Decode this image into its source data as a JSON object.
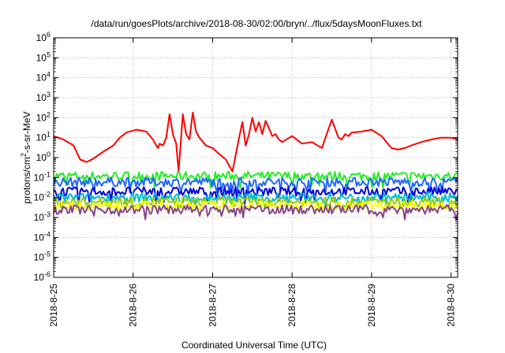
{
  "chart_data": {
    "type": "line",
    "title": "/data/run/goesPlots/archive/2018-08-30/02:00/bryn/../flux/5daysMoonFluxes.txt",
    "xlabel": "Coordinated Universal Time (UTC)",
    "ylabel_parts": [
      "protons/cm",
      "2",
      "-s-sr-MeV"
    ],
    "y_scale": "log",
    "ylim": [
      1e-06,
      1000000.0
    ],
    "y_ticks": [
      {
        "base": "10",
        "exp": "6",
        "value": 1000000.0
      },
      {
        "base": "10",
        "exp": "5",
        "value": 100000.0
      },
      {
        "base": "10",
        "exp": "4",
        "value": 10000.0
      },
      {
        "base": "10",
        "exp": "3",
        "value": 1000.0
      },
      {
        "base": "10",
        "exp": "2",
        "value": 100.0
      },
      {
        "base": "10",
        "exp": "1",
        "value": 10.0
      },
      {
        "base": "10",
        "exp": "0",
        "value": 1.0
      },
      {
        "base": "10",
        "exp": "-1",
        "value": 0.1
      },
      {
        "base": "10",
        "exp": "-2",
        "value": 0.01
      },
      {
        "base": "10",
        "exp": "-3",
        "value": 0.001
      },
      {
        "base": "10",
        "exp": "-4",
        "value": 0.0001
      },
      {
        "base": "10",
        "exp": "-5",
        "value": 1e-05
      },
      {
        "base": "10",
        "exp": "-6",
        "value": 1e-06
      }
    ],
    "x_ticks": [
      "2018-8-25",
      "2018-8-26",
      "2018-8-27",
      "2018-8-28",
      "2018-8-29",
      "2018-8-30"
    ],
    "xlim": [
      "2018-08-25T00:00",
      "2018-08-30T02:00"
    ],
    "grid": true,
    "legend": "none",
    "series": [
      {
        "color": "#ff0000",
        "x": [
          "2018-08-25T00:00",
          "2018-08-25T03:00",
          "2018-08-25T06:00",
          "2018-08-25T08:00",
          "2018-08-25T10:00",
          "2018-08-25T12:00",
          "2018-08-25T15:00",
          "2018-08-25T18:00",
          "2018-08-25T20:00",
          "2018-08-25T22:00",
          "2018-08-26T01:00",
          "2018-08-26T04:00",
          "2018-08-26T06:00",
          "2018-08-26T07:00",
          "2018-08-26T07:30",
          "2018-08-26T08:00",
          "2018-08-26T09:00",
          "2018-08-26T10:00",
          "2018-08-26T11:00",
          "2018-08-26T12:00",
          "2018-08-26T13:00",
          "2018-08-26T13:45",
          "2018-08-26T15:00",
          "2018-08-26T16:00",
          "2018-08-26T17:00",
          "2018-08-26T18:00",
          "2018-08-26T19:00",
          "2018-08-26T20:00",
          "2018-08-26T22:00",
          "2018-08-27T00:00",
          "2018-08-27T02:00",
          "2018-08-27T04:00",
          "2018-08-27T05:00",
          "2018-08-27T06:00",
          "2018-08-27T08:00",
          "2018-08-27T09:00",
          "2018-08-27T10:00",
          "2018-08-27T11:00",
          "2018-08-27T12:00",
          "2018-08-27T13:00",
          "2018-08-27T14:00",
          "2018-08-27T15:00",
          "2018-08-27T16:00",
          "2018-08-27T17:00",
          "2018-08-27T18:00",
          "2018-08-27T19:00",
          "2018-08-27T20:00",
          "2018-08-27T21:00",
          "2018-08-28T00:00",
          "2018-08-28T03:00",
          "2018-08-28T06:00",
          "2018-08-28T09:00",
          "2018-08-28T12:00",
          "2018-08-28T14:00",
          "2018-08-28T15:00",
          "2018-08-28T16:00",
          "2018-08-28T17:00",
          "2018-08-28T18:00",
          "2018-08-28T21:00",
          "2018-08-29T00:00",
          "2018-08-29T03:00",
          "2018-08-29T06:00",
          "2018-08-29T08:00",
          "2018-08-29T10:00",
          "2018-08-29T12:00",
          "2018-08-29T15:00",
          "2018-08-29T18:00",
          "2018-08-29T21:00",
          "2018-08-30T00:00",
          "2018-08-30T02:00"
        ],
        "values": [
          12,
          8,
          4,
          0.8,
          0.6,
          0.9,
          2,
          4,
          10,
          18,
          25,
          20,
          8,
          4,
          3,
          5,
          4,
          10,
          150,
          15,
          5,
          0.2,
          150,
          15,
          8,
          180,
          20,
          10,
          4,
          3,
          1.5,
          0.8,
          0.4,
          0.2,
          10,
          60,
          4,
          15,
          100,
          20,
          60,
          15,
          70,
          30,
          12,
          15,
          8,
          6,
          12,
          5,
          6,
          3,
          80,
          10,
          8,
          15,
          12,
          18,
          20,
          25,
          12,
          3,
          2.5,
          3,
          4,
          6,
          8,
          10,
          10,
          8
        ]
      },
      {
        "color": "#22ee22",
        "level": 0.12,
        "dips": [
          0.03,
          0.05,
          0.04,
          0.06
        ]
      },
      {
        "color": "#2266ff",
        "level": 0.06,
        "dips": [
          0.015,
          0.02,
          0.018
        ]
      },
      {
        "color": "#0000dd",
        "level": 0.02,
        "dips": [
          0.005,
          0.006,
          0.007
        ]
      },
      {
        "color": "#00bbcc",
        "level": 0.01,
        "dips": [
          0.004,
          0.005
        ]
      },
      {
        "color": "#99cc00",
        "level": 0.006,
        "dips": [
          0.003
        ]
      },
      {
        "color": "#ffff00",
        "level": 0.004,
        "dips": [
          0.0035
        ]
      },
      {
        "color": "#884488",
        "level": 0.0025,
        "dips": [
          0.0008,
          0.001,
          0.0012
        ]
      }
    ]
  }
}
